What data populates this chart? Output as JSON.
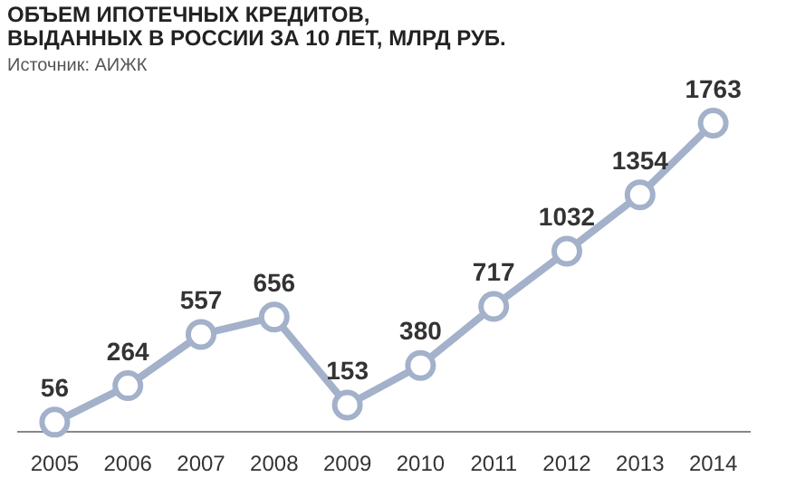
{
  "chart_data": {
    "type": "line",
    "title": "ОБЪЕМ ИПОТЕЧНЫХ КРЕДИТОВ,\nВЫДАННЫХ В РОССИИ ЗА 10 ЛЕТ, МЛРД РУБ.",
    "subtitle": "Источник: АИЖК",
    "categories": [
      "2005",
      "2006",
      "2007",
      "2008",
      "2009",
      "2010",
      "2011",
      "2012",
      "2013",
      "2014"
    ],
    "series": [
      {
        "color": "#a3b1ca",
        "values": [
          56,
          264,
          557,
          656,
          153,
          380,
          717,
          1032,
          1354,
          1763
        ]
      }
    ],
    "data_labels": true,
    "marker": "circle",
    "line_style": "solid",
    "grid": false,
    "legend": false
  }
}
